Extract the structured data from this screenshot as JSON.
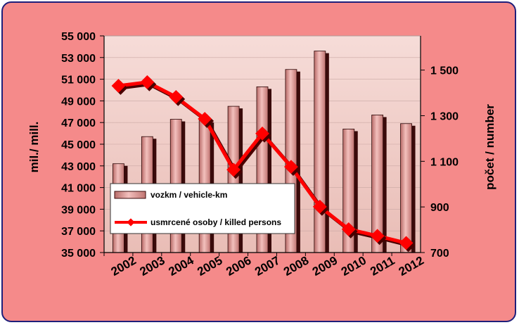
{
  "chart_data": {
    "type": "bar+line",
    "categories": [
      "2002",
      "2003",
      "2004",
      "2005",
      "2006",
      "2007",
      "2008",
      "2009",
      "2010",
      "2011",
      "2012"
    ],
    "series": [
      {
        "name": "vozkm / vehicle-km",
        "type": "bar",
        "axis": "left",
        "values": [
          43200,
          45700,
          47300,
          47200,
          48500,
          50300,
          51900,
          53600,
          46400,
          47700,
          46900
        ]
      },
      {
        "name": "usmrcené osoby / killed persons",
        "type": "line",
        "axis": "right",
        "values": [
          1431,
          1447,
          1382,
          1286,
          1063,
          1222,
          1076,
          901,
          802,
          773,
          742
        ]
      }
    ],
    "ylabel_left": "mil./ mill.",
    "ylabel_right": "počet / number",
    "ylim_left": [
      35000,
      55000
    ],
    "ylim_right": [
      700,
      1650
    ],
    "yticks_left": [
      "35 000",
      "37 000",
      "39 000",
      "41 000",
      "43 000",
      "45 000",
      "47 000",
      "49 000",
      "51 000",
      "53 000",
      "55 000"
    ],
    "yticks_right": [
      "700",
      "900",
      "1 100",
      "1 300",
      "1 500"
    ],
    "yticks_right_values": [
      700,
      900,
      1100,
      1300,
      1500
    ],
    "legend_placement": "bottom-left inside plot",
    "colors": {
      "bar_front": "#e7a7a5",
      "bar_side": "#3a0a0a",
      "line": "#ff0000",
      "marker": "#ff0000",
      "background": "#f58a8a",
      "plot_area": "#f4d4cf",
      "border": "#1f1f7a"
    }
  }
}
